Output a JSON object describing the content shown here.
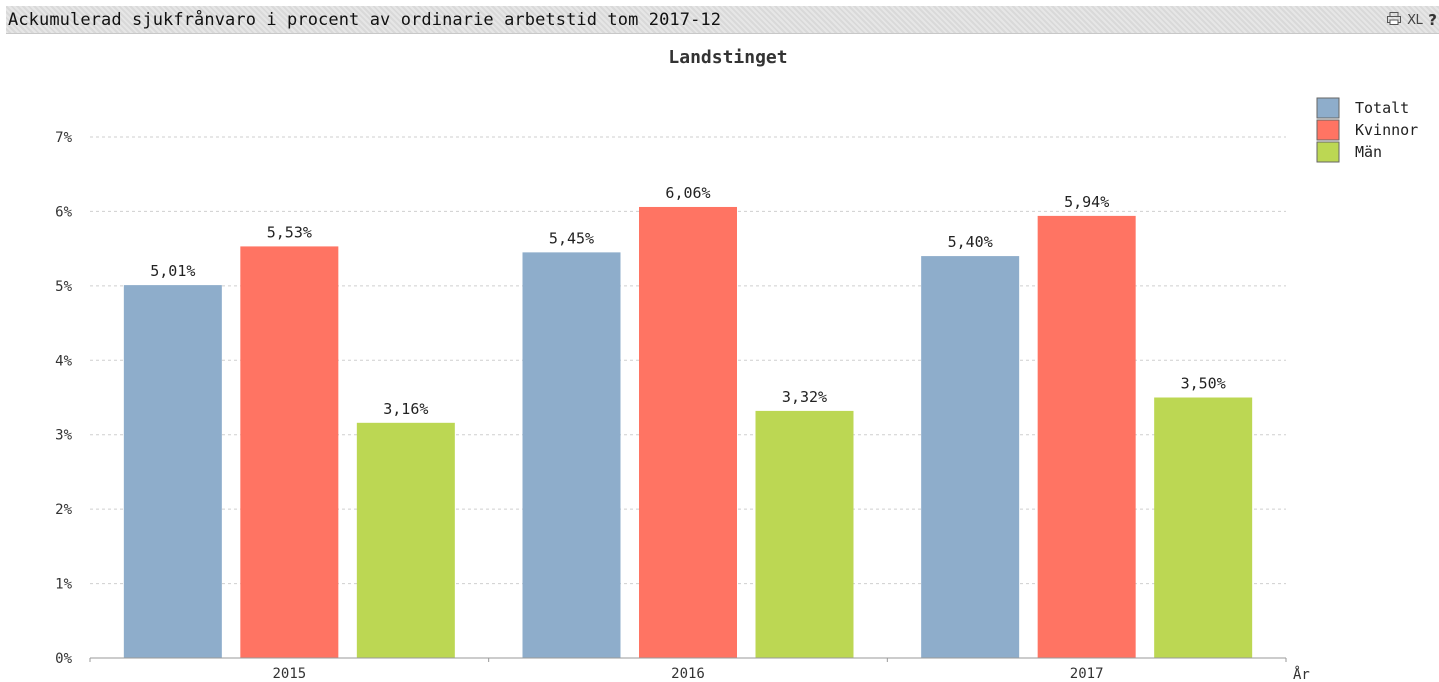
{
  "window": {
    "title": "Ackumulerad sjukfrånvaro i procent av ordinarie arbetstid tom 2017-12",
    "icons": [
      {
        "name": "print-icon"
      },
      {
        "name": "xl-icon",
        "label": "XL"
      },
      {
        "name": "help-icon",
        "label": "?"
      }
    ]
  },
  "chart_data": {
    "type": "bar",
    "title": "Landstinget",
    "xlabel": "År",
    "ylabel": "",
    "categories": [
      "2015",
      "2016",
      "2017"
    ],
    "series": [
      {
        "name": "Totalt",
        "color": "#8eadcb",
        "values": [
          5.01,
          5.45,
          5.4
        ],
        "labels": [
          "5,01%",
          "5,45%",
          "5,40%"
        ]
      },
      {
        "name": "Kvinnor",
        "color": "#ff7463",
        "values": [
          5.53,
          6.06,
          5.94
        ],
        "labels": [
          "5,53%",
          "6,06%",
          "5,94%"
        ]
      },
      {
        "name": "Män",
        "color": "#bcd753",
        "values": [
          3.16,
          3.32,
          3.5
        ],
        "labels": [
          "3,16%",
          "3,32%",
          "3,50%"
        ]
      }
    ],
    "ylim": [
      0,
      7
    ],
    "yticks": [
      0,
      1,
      2,
      3,
      4,
      5,
      6,
      7
    ],
    "ytick_labels": [
      "0%",
      "1%",
      "2%",
      "3%",
      "4%",
      "5%",
      "6%",
      "7%"
    ],
    "grid": true,
    "legend_position": "top-right"
  }
}
